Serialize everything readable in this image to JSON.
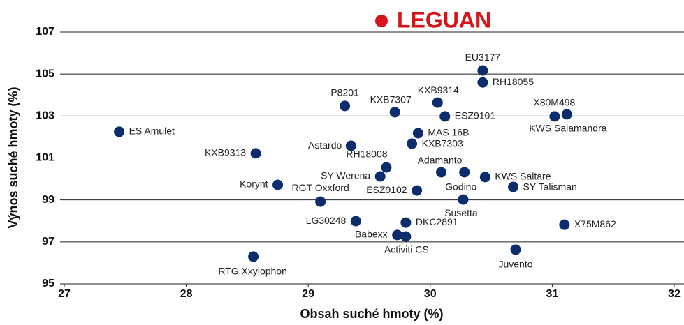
{
  "chart_data": {
    "type": "scatter",
    "title": "LEGUAN",
    "x_label": "Obsah suché hmoty (%)",
    "y_label": "Výnos suché hmoty (%)",
    "xlim": [
      27,
      32
    ],
    "xticks": [
      27,
      28,
      29,
      30,
      31,
      32
    ],
    "ylim": [
      95,
      107
    ],
    "yticks": [
      95,
      97,
      99,
      101,
      103,
      105,
      107
    ],
    "grid": true,
    "color": "#0b2d6b",
    "title_color": "#d7141a",
    "labels": [
      "EU3177",
      "RH18055",
      "P8201",
      "KXB7307",
      "KXB9314",
      "ESZ9101",
      "X80M498",
      "KWS Salamandra",
      "ES Amulet",
      "MAS 16B",
      "Astardo",
      "KXB7303",
      "KXB9313",
      "RH18008",
      "Adamanto",
      "SY Werena",
      "Godino",
      "KWS Saltare",
      "Korynt",
      "SY Talisman",
      "ESZ9102",
      "RGT Oxxford",
      "Susetta",
      "LG30248",
      "DKC2891",
      "X75M862",
      "Babexx",
      "Activiti CS",
      "Juvento",
      "RTG Xxylophon"
    ],
    "x": [
      30.43,
      30.43,
      29.3,
      29.71,
      30.06,
      30.12,
      31.12,
      31.02,
      27.45,
      29.9,
      29.35,
      29.85,
      28.57,
      29.64,
      30.09,
      29.59,
      30.28,
      30.45,
      28.75,
      30.68,
      29.89,
      29.1,
      30.27,
      29.39,
      29.8,
      31.1,
      29.73,
      29.8,
      30.7,
      28.55
    ],
    "y": [
      105.17,
      104.6,
      103.48,
      103.18,
      103.64,
      102.98,
      103.08,
      102.98,
      102.25,
      102.18,
      101.58,
      101.68,
      101.22,
      100.55,
      100.32,
      100.12,
      100.32,
      100.09,
      99.72,
      99.62,
      99.45,
      98.92,
      99.02,
      97.99,
      97.92,
      97.82,
      97.33,
      97.26,
      96.63,
      96.3
    ]
  }
}
